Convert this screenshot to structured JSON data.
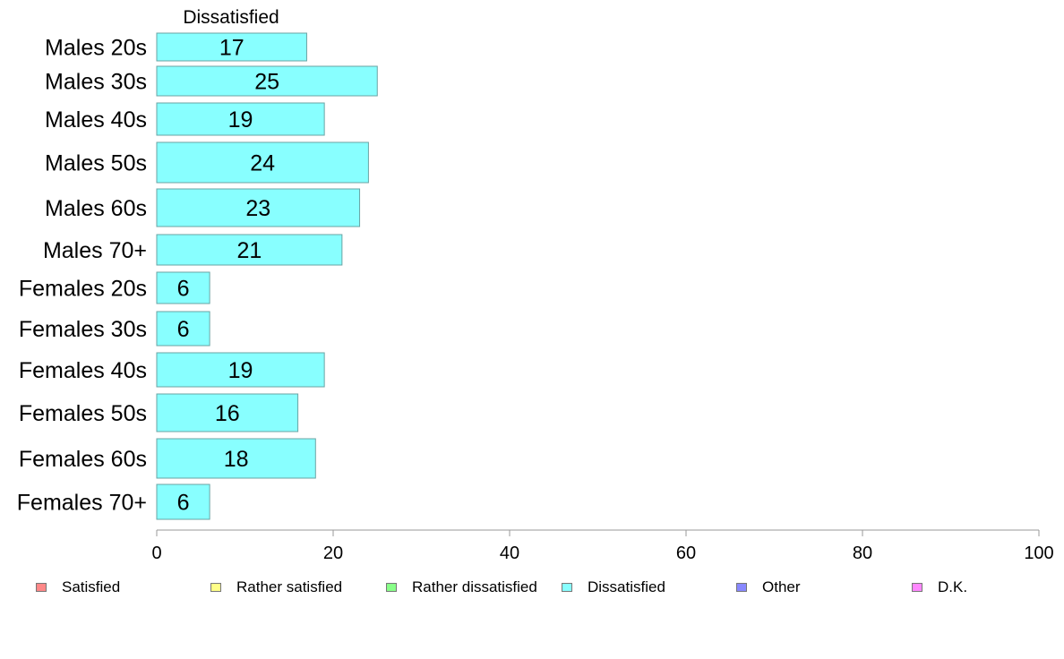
{
  "chart_data": {
    "type": "bar",
    "orientation": "horizontal",
    "title": "Dissatisfied",
    "categories": [
      "Males 20s",
      "Males 30s",
      "Males 40s",
      "Males 50s",
      "Males 60s",
      "Males 70+",
      "Females 20s",
      "Females 30s",
      "Females 40s",
      "Females 50s",
      "Females 60s",
      "Females 70+"
    ],
    "series": [
      {
        "name": "Dissatisfied",
        "color": "#88ffff",
        "values": [
          17,
          25,
          19,
          24,
          23,
          21,
          6,
          6,
          19,
          16,
          18,
          6
        ]
      }
    ],
    "xlim": [
      0,
      100
    ],
    "xticks": [
      0,
      20,
      40,
      60,
      80,
      100
    ],
    "grid": false,
    "legend_position": "bottom",
    "legend": [
      {
        "label": "Satisfied",
        "color": "#ff8888"
      },
      {
        "label": "Rather satisfied",
        "color": "#ffff88"
      },
      {
        "label": "Rather dissatisfied",
        "color": "#88ff88"
      },
      {
        "label": "Dissatisfied",
        "color": "#88ffff"
      },
      {
        "label": "Other",
        "color": "#8888ff"
      },
      {
        "label": "D.K.",
        "color": "#ff88ff"
      }
    ]
  }
}
